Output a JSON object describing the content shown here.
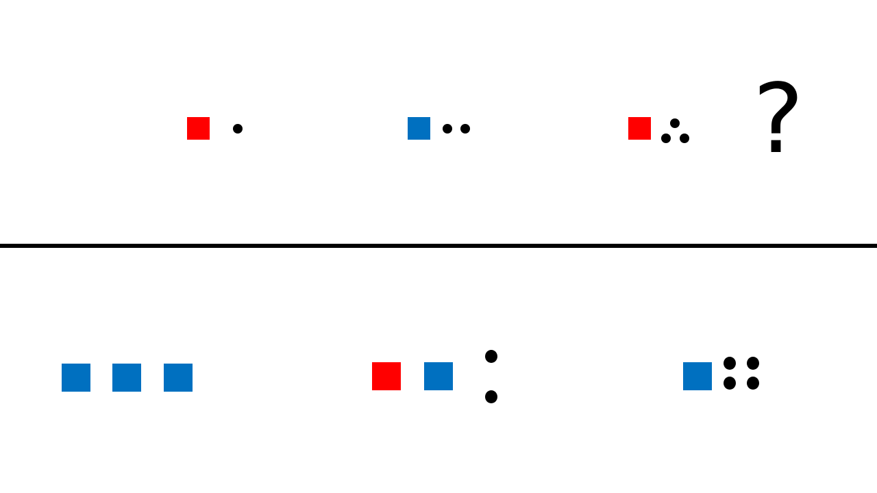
{
  "colors": {
    "red": "#ff0000",
    "blue": "#0070c0",
    "dot": "#000000",
    "divider": "#000000",
    "background": "#ffffff"
  },
  "sequence": [
    {
      "square_color": "red",
      "dot_count": 1
    },
    {
      "square_color": "blue",
      "dot_count": 2
    },
    {
      "square_color": "red",
      "dot_count": 3
    }
  ],
  "question_mark": "?",
  "options": [
    {
      "squares": [
        "blue",
        "blue",
        "blue"
      ],
      "dot_count": 0
    },
    {
      "squares": [
        "red",
        "blue"
      ],
      "dot_count": 2
    },
    {
      "squares": [
        "blue"
      ],
      "dot_count": 4
    }
  ]
}
